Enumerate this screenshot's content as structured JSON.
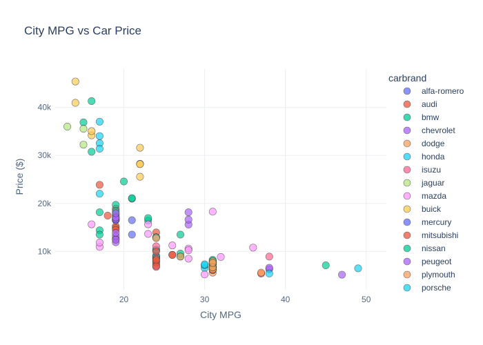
{
  "chart_data": {
    "type": "scatter",
    "title": "City MPG vs Car Price",
    "xlabel": "City MPG",
    "ylabel": "Price ($)",
    "xlim": [
      11.5,
      52.5
    ],
    "ylim": [
      2000,
      48000
    ],
    "xticks": [
      20,
      30,
      40,
      50
    ],
    "yticks": [
      10000,
      20000,
      30000,
      40000
    ],
    "ytick_labels": [
      "10k",
      "20k",
      "30k",
      "40k"
    ],
    "grid": true,
    "legend_title": "carbrand",
    "legend_placement": "right",
    "series": [
      {
        "name": "alfa-romero",
        "color": "#636efa",
        "points": [
          [
            21,
            13495
          ],
          [
            21,
            16500
          ],
          [
            19,
            16500
          ]
        ]
      },
      {
        "name": "audi",
        "color": "#ef553b",
        "points": [
          [
            24,
            13950
          ],
          [
            18,
            17450
          ],
          [
            19,
            15250
          ],
          [
            19,
            17710
          ],
          [
            19,
            18920
          ],
          [
            17,
            23875
          ]
        ]
      },
      {
        "name": "bmw",
        "color": "#00cc96",
        "points": [
          [
            23,
            16430
          ],
          [
            23,
            16925
          ],
          [
            21,
            20970
          ],
          [
            21,
            21105
          ],
          [
            20,
            24565
          ],
          [
            16,
            30760
          ],
          [
            16,
            41315
          ],
          [
            15,
            36880
          ]
        ]
      },
      {
        "name": "chevrolet",
        "color": "#ab63fa",
        "points": [
          [
            47,
            5151
          ],
          [
            38,
            6295
          ],
          [
            38,
            6575
          ]
        ]
      },
      {
        "name": "dodge",
        "color": "#ffa15a",
        "points": [
          [
            31,
            5572
          ],
          [
            31,
            6377
          ],
          [
            31,
            7957
          ],
          [
            31,
            6229
          ],
          [
            31,
            6692
          ],
          [
            31,
            7609
          ],
          [
            24,
            8558
          ],
          [
            24,
            8921
          ],
          [
            24,
            12964
          ]
        ]
      },
      {
        "name": "honda",
        "color": "#19d3f3",
        "points": [
          [
            49,
            6479
          ],
          [
            31,
            6855
          ],
          [
            38,
            5399
          ],
          [
            30,
            6529
          ],
          [
            30,
            7129
          ],
          [
            30,
            7295
          ],
          [
            24,
            7295
          ],
          [
            24,
            7895
          ],
          [
            24,
            9095
          ],
          [
            24,
            8845
          ],
          [
            24,
            10295
          ],
          [
            24,
            12945
          ],
          [
            24,
            10345
          ]
        ]
      },
      {
        "name": "isuzu",
        "color": "#ff6692",
        "points": [
          [
            24,
            6785
          ],
          [
            24,
            11048
          ],
          [
            38,
            8916
          ]
        ]
      },
      {
        "name": "jaguar",
        "color": "#b6e880",
        "points": [
          [
            15,
            32250
          ],
          [
            15,
            35550
          ],
          [
            13,
            36000
          ]
        ]
      },
      {
        "name": "mazda",
        "color": "#ff97ff",
        "points": [
          [
            30,
            5195
          ],
          [
            31,
            6095
          ],
          [
            31,
            6795
          ],
          [
            31,
            6695
          ],
          [
            31,
            7395
          ],
          [
            17,
            10945
          ],
          [
            17,
            11845
          ],
          [
            23,
            13645
          ],
          [
            23,
            15645
          ],
          [
            16,
            15645
          ],
          [
            32,
            8845
          ],
          [
            28,
            8495
          ],
          [
            28,
            10595
          ],
          [
            28,
            10245
          ],
          [
            36,
            10795
          ],
          [
            26,
            11245
          ],
          [
            31,
            18280
          ]
        ]
      },
      {
        "name": "buick",
        "color": "#fecb52",
        "points": [
          [
            22,
            25552
          ],
          [
            22,
            28248
          ],
          [
            22,
            28176
          ],
          [
            22,
            31600
          ],
          [
            16,
            34184
          ],
          [
            16,
            35056
          ],
          [
            14,
            40960
          ],
          [
            14,
            45400
          ]
        ]
      },
      {
        "name": "mercury",
        "color": "#636efa",
        "points": [
          [
            19,
            16503
          ]
        ]
      },
      {
        "name": "mitsubishi",
        "color": "#ef553b",
        "points": [
          [
            37,
            5389
          ],
          [
            31,
            6189
          ],
          [
            31,
            6669
          ],
          [
            24,
            7689
          ],
          [
            24,
            9959
          ],
          [
            24,
            8499
          ],
          [
            19,
            12629
          ],
          [
            19,
            14869
          ],
          [
            19,
            14489
          ],
          [
            24,
            6989
          ],
          [
            24,
            8189
          ],
          [
            26,
            9279
          ],
          [
            26,
            9279
          ]
        ]
      },
      {
        "name": "nissan",
        "color": "#00cc96",
        "points": [
          [
            45,
            7099
          ],
          [
            31,
            6649
          ],
          [
            31,
            6849
          ],
          [
            31,
            7349
          ],
          [
            31,
            7299
          ],
          [
            31,
            7799
          ],
          [
            31,
            7499
          ],
          [
            31,
            7999
          ],
          [
            31,
            8249
          ],
          [
            27,
            8949
          ],
          [
            27,
            9549
          ],
          [
            27,
            13499
          ],
          [
            17,
            14399
          ],
          [
            17,
            13499
          ],
          [
            19,
            17199
          ],
          [
            19,
            19699
          ],
          [
            19,
            18399
          ],
          [
            17,
            18150
          ]
        ]
      },
      {
        "name": "peugeot",
        "color": "#ab63fa",
        "points": [
          [
            19,
            11900
          ],
          [
            19,
            13200
          ],
          [
            19,
            12440
          ],
          [
            19,
            13860
          ],
          [
            28,
            15580
          ],
          [
            19,
            16900
          ],
          [
            19,
            16695
          ],
          [
            19,
            17075
          ],
          [
            28,
            16630
          ],
          [
            19,
            17950
          ],
          [
            28,
            18150
          ]
        ]
      },
      {
        "name": "plymouth",
        "color": "#ffa15a",
        "points": [
          [
            37,
            5572
          ],
          [
            31,
            7957
          ],
          [
            31,
            6229
          ],
          [
            31,
            6692
          ],
          [
            31,
            7609
          ],
          [
            27,
            8921
          ],
          [
            24,
            12764
          ]
        ]
      },
      {
        "name": "porsche",
        "color": "#19d3f3",
        "points": [
          [
            17,
            22018
          ],
          [
            17,
            32528
          ],
          [
            17,
            34028
          ],
          [
            17,
            37028
          ],
          [
            17,
            31400
          ]
        ]
      }
    ]
  }
}
